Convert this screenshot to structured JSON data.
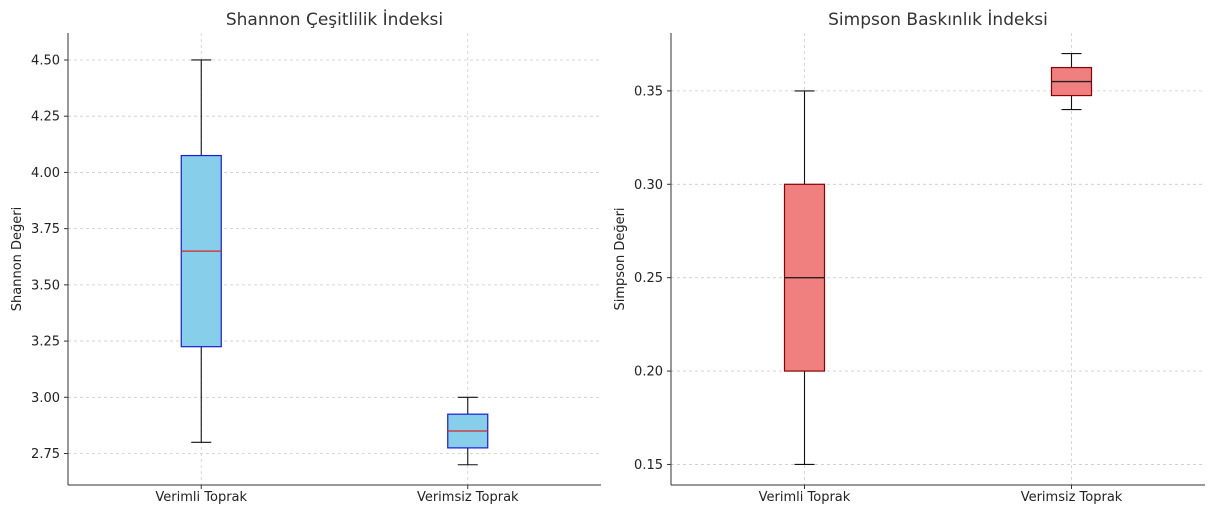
{
  "chart_data": [
    {
      "type": "box",
      "title": "Shannon Çeşitlilik İndeksi",
      "xlabel": "",
      "ylabel": "Shannon Değeri",
      "categories": [
        "Verimli Toprak",
        "Verimsiz Toprak"
      ],
      "boxes": [
        {
          "whisker_low": 2.8,
          "q1": 3.225,
          "median": 3.65,
          "q3": 4.075,
          "whisker_high": 4.5
        },
        {
          "whisker_low": 2.7,
          "q1": 2.775,
          "median": 2.85,
          "q3": 2.925,
          "whisker_high": 3.0
        }
      ],
      "ylim": [
        2.61,
        4.62
      ],
      "yticks": [
        2.75,
        3.0,
        3.25,
        3.5,
        3.75,
        4.0,
        4.25,
        4.5
      ],
      "ytick_labels": [
        "2.75",
        "3.00",
        "3.25",
        "3.50",
        "3.75",
        "4.00",
        "4.25",
        "4.50"
      ],
      "grid": true,
      "box_color": "#87ceeb",
      "edge_color": "#1a1adb",
      "median_color": "#d62728"
    },
    {
      "type": "box",
      "title": "Simpson Baskınlık İndeksi",
      "xlabel": "",
      "ylabel": "Simpson Değeri",
      "categories": [
        "Verimli Toprak",
        "Verimsiz Toprak"
      ],
      "boxes": [
        {
          "whisker_low": 0.15,
          "q1": 0.2,
          "median": 0.25,
          "q3": 0.3,
          "whisker_high": 0.35
        },
        {
          "whisker_low": 0.34,
          "q1": 0.3475,
          "median": 0.355,
          "q3": 0.3625,
          "whisker_high": 0.37
        }
      ],
      "ylim": [
        0.139,
        0.381
      ],
      "yticks": [
        0.15,
        0.2,
        0.25,
        0.3,
        0.35
      ],
      "ytick_labels": [
        "0.15",
        "0.20",
        "0.25",
        "0.30",
        "0.35"
      ],
      "grid": true,
      "box_color": "#f08080",
      "edge_color": "#8b0000",
      "median_color": "#222222"
    }
  ]
}
